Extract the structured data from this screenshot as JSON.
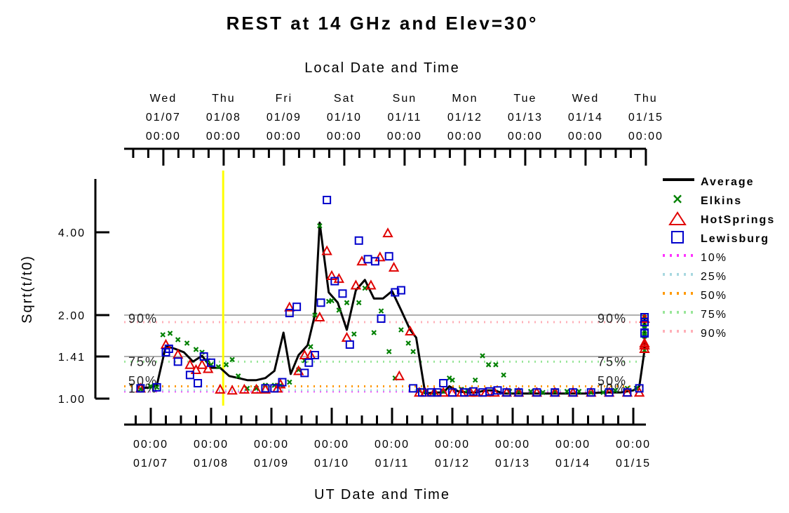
{
  "chart_data": {
    "type": "scatter",
    "title": "REST at 14 GHz and Elev=30°",
    "top_axis_label": "Local Date and Time",
    "xlabel": "UT Date and Time",
    "ylabel": "Sqrt(t/t0)",
    "y_scale": "sqrt-ish (tick labels at 1.00, 1.41, 2.00, 4.00)",
    "y_ticks": [
      "1.00",
      "1.41",
      "2.00",
      "4.00"
    ],
    "grid_values": [
      1.41,
      2.0
    ],
    "x_ticks_ut": [
      {
        "time": "00:00",
        "date": "01/07"
      },
      {
        "time": "00:00",
        "date": "01/08"
      },
      {
        "time": "00:00",
        "date": "01/09"
      },
      {
        "time": "00:00",
        "date": "01/10"
      },
      {
        "time": "00:00",
        "date": "01/11"
      },
      {
        "time": "00:00",
        "date": "01/12"
      },
      {
        "time": "00:00",
        "date": "01/13"
      },
      {
        "time": "00:00",
        "date": "01/14"
      },
      {
        "time": "00:00",
        "date": "01/15"
      }
    ],
    "x_ticks_local": [
      {
        "day": "Wed",
        "date": "01/07",
        "time": "00:00"
      },
      {
        "day": "Thu",
        "date": "01/08",
        "time": "00:00"
      },
      {
        "day": "Fri",
        "date": "01/09",
        "time": "00:00"
      },
      {
        "day": "Sat",
        "date": "01/10",
        "time": "00:00"
      },
      {
        "day": "Sun",
        "date": "01/11",
        "time": "00:00"
      },
      {
        "day": "Mon",
        "date": "01/12",
        "time": "00:00"
      },
      {
        "day": "Tue",
        "date": "01/13",
        "time": "00:00"
      },
      {
        "day": "Wed",
        "date": "01/14",
        "time": "00:00"
      },
      {
        "day": "Thu",
        "date": "01/15",
        "time": "00:00"
      }
    ],
    "marker_day": 1.2,
    "percentiles": [
      {
        "name": "10%",
        "value": 1.07,
        "color": "#ff33ff"
      },
      {
        "name": "25%",
        "value": 1.08,
        "color": "#a8d8e0"
      },
      {
        "name": "50%",
        "value": 1.12,
        "color": "#ff9900"
      },
      {
        "name": "75%",
        "value": 1.36,
        "color": "#99e699"
      },
      {
        "name": "90%",
        "value": 1.9,
        "color": "#ffb0b8"
      }
    ],
    "percentile_side_labels": [
      "90%",
      "75%",
      "50%",
      "10%"
    ],
    "colors": {
      "average": "#000000",
      "elkins": "#008000",
      "hotsprings": "#e00000",
      "lewisburg": "#0000cc",
      "marker": "#ffff00",
      "grid": "#b0b0b0"
    },
    "series": [
      {
        "name": "Average",
        "style": "line",
        "points": [
          [
            -0.17,
            1.1
          ],
          [
            0.0,
            1.11
          ],
          [
            0.1,
            1.13
          ],
          [
            0.25,
            1.56
          ],
          [
            0.4,
            1.52
          ],
          [
            0.55,
            1.47
          ],
          [
            0.7,
            1.36
          ],
          [
            0.85,
            1.42
          ],
          [
            1.0,
            1.3
          ],
          [
            1.15,
            1.3
          ],
          [
            1.3,
            1.22
          ],
          [
            1.45,
            1.2
          ],
          [
            1.6,
            1.18
          ],
          [
            1.75,
            1.18
          ],
          [
            1.9,
            1.2
          ],
          [
            2.05,
            1.27
          ],
          [
            2.2,
            1.75
          ],
          [
            2.32,
            1.24
          ],
          [
            2.45,
            1.43
          ],
          [
            2.6,
            1.57
          ],
          [
            2.72,
            2.0
          ],
          [
            2.8,
            4.3
          ],
          [
            2.95,
            2.55
          ],
          [
            3.1,
            2.3
          ],
          [
            3.25,
            1.79
          ],
          [
            3.4,
            2.6
          ],
          [
            3.55,
            2.85
          ],
          [
            3.7,
            2.4
          ],
          [
            3.85,
            2.4
          ],
          [
            4.0,
            2.58
          ],
          [
            4.15,
            2.12
          ],
          [
            4.3,
            1.79
          ],
          [
            4.4,
            1.68
          ],
          [
            4.55,
            1.05
          ],
          [
            4.7,
            1.06
          ],
          [
            4.85,
            1.06
          ],
          [
            4.95,
            1.12
          ],
          [
            5.1,
            1.07
          ],
          [
            5.25,
            1.06
          ],
          [
            5.4,
            1.06
          ],
          [
            5.55,
            1.08
          ],
          [
            5.7,
            1.08
          ],
          [
            5.85,
            1.05
          ],
          [
            6.0,
            1.05
          ],
          [
            6.3,
            1.05
          ],
          [
            6.6,
            1.05
          ],
          [
            6.9,
            1.05
          ],
          [
            7.2,
            1.05
          ],
          [
            7.5,
            1.06
          ],
          [
            7.8,
            1.06
          ],
          [
            8.0,
            1.08
          ],
          [
            8.1,
            1.12
          ],
          [
            8.3,
            1.5
          ],
          [
            8.45,
            1.77
          ],
          [
            8.55,
            1.75
          ],
          [
            8.65,
            1.9
          ],
          [
            8.75,
            1.75
          ],
          [
            8.9,
            1.85
          ],
          [
            9.1,
            1.95
          ]
        ]
      },
      {
        "name": "Elkins",
        "style": "x",
        "points": [
          [
            -0.17,
            1.09
          ],
          [
            0.0,
            1.12
          ],
          [
            0.1,
            1.11
          ],
          [
            0.2,
            1.72
          ],
          [
            0.32,
            1.74
          ],
          [
            0.45,
            1.65
          ],
          [
            0.6,
            1.6
          ],
          [
            0.75,
            1.51
          ],
          [
            0.85,
            1.47
          ],
          [
            0.95,
            1.37
          ],
          [
            1.0,
            1.33
          ],
          [
            1.12,
            1.31
          ],
          [
            1.25,
            1.33
          ],
          [
            1.35,
            1.38
          ],
          [
            1.45,
            1.22
          ],
          [
            1.6,
            1.1
          ],
          [
            1.75,
            1.1
          ],
          [
            1.9,
            1.13
          ],
          [
            2.05,
            1.13
          ],
          [
            2.15,
            1.13
          ],
          [
            2.3,
            1.16
          ],
          [
            2.45,
            1.28
          ],
          [
            2.55,
            1.37
          ],
          [
            2.65,
            1.55
          ],
          [
            2.72,
            2.0
          ],
          [
            2.8,
            4.2
          ],
          [
            2.95,
            2.33
          ],
          [
            3.0,
            2.35
          ],
          [
            3.12,
            2.12
          ],
          [
            3.25,
            2.3
          ],
          [
            3.37,
            1.73
          ],
          [
            3.45,
            2.3
          ],
          [
            3.55,
            2.65
          ],
          [
            3.7,
            1.75
          ],
          [
            3.82,
            2.1
          ],
          [
            3.95,
            1.48
          ],
          [
            4.05,
            1.2
          ],
          [
            4.15,
            1.79
          ],
          [
            4.27,
            1.6
          ],
          [
            4.35,
            1.48
          ],
          [
            4.45,
            1.08
          ],
          [
            4.55,
            1.07
          ],
          [
            4.7,
            1.06
          ],
          [
            4.85,
            1.07
          ],
          [
            4.95,
            1.2
          ],
          [
            5.0,
            1.18
          ],
          [
            5.15,
            1.09
          ],
          [
            5.25,
            1.08
          ],
          [
            5.38,
            1.18
          ],
          [
            5.5,
            1.42
          ],
          [
            5.6,
            1.33
          ],
          [
            5.72,
            1.33
          ],
          [
            5.85,
            1.23
          ],
          [
            5.95,
            1.07
          ],
          [
            6.1,
            1.07
          ],
          [
            6.3,
            1.07
          ],
          [
            6.5,
            1.06
          ],
          [
            6.7,
            1.07
          ],
          [
            6.9,
            1.07
          ],
          [
            7.1,
            1.07
          ],
          [
            7.3,
            1.06
          ],
          [
            7.5,
            1.06
          ],
          [
            7.7,
            1.08
          ],
          [
            7.9,
            1.1
          ],
          [
            8.05,
            1.1
          ],
          [
            8.25,
            1.5
          ],
          [
            8.4,
            1.7
          ],
          [
            8.5,
            1.78
          ],
          [
            8.6,
            1.71
          ],
          [
            8.72,
            1.85
          ],
          [
            8.85,
            1.73
          ],
          [
            9.0,
            1.82
          ],
          [
            9.13,
            1.97
          ]
        ]
      },
      {
        "name": "HotSprings",
        "style": "triangle",
        "points": [
          [
            -0.17,
            1.1
          ],
          [
            0.25,
            1.58
          ],
          [
            0.45,
            1.44
          ],
          [
            0.65,
            1.33
          ],
          [
            0.75,
            1.28
          ],
          [
            0.85,
            1.33
          ],
          [
            0.95,
            1.29
          ],
          [
            1.15,
            1.09
          ],
          [
            1.35,
            1.08
          ],
          [
            1.55,
            1.09
          ],
          [
            1.75,
            1.09
          ],
          [
            1.9,
            1.09
          ],
          [
            2.1,
            1.1
          ],
          [
            2.15,
            1.14
          ],
          [
            2.3,
            2.19
          ],
          [
            2.45,
            1.27
          ],
          [
            2.55,
            1.43
          ],
          [
            2.65,
            1.43
          ],
          [
            2.8,
            1.97
          ],
          [
            2.92,
            3.55
          ],
          [
            3.0,
            2.95
          ],
          [
            3.12,
            2.88
          ],
          [
            3.25,
            1.68
          ],
          [
            3.4,
            2.72
          ],
          [
            3.5,
            3.3
          ],
          [
            3.65,
            2.72
          ],
          [
            3.8,
            3.4
          ],
          [
            3.93,
            3.98
          ],
          [
            4.03,
            3.15
          ],
          [
            4.12,
            1.22
          ],
          [
            4.3,
            1.77
          ],
          [
            4.45,
            1.06
          ],
          [
            4.55,
            1.06
          ],
          [
            4.7,
            1.06
          ],
          [
            4.85,
            1.06
          ],
          [
            5.0,
            1.06
          ],
          [
            5.15,
            1.06
          ],
          [
            5.3,
            1.06
          ],
          [
            5.4,
            1.06
          ],
          [
            5.55,
            1.06
          ],
          [
            5.7,
            1.06
          ],
          [
            5.9,
            1.06
          ],
          [
            6.1,
            1.06
          ],
          [
            6.4,
            1.06
          ],
          [
            6.7,
            1.06
          ],
          [
            7.0,
            1.06
          ],
          [
            7.3,
            1.06
          ],
          [
            7.6,
            1.06
          ],
          [
            7.9,
            1.06
          ],
          [
            8.1,
            1.06
          ],
          [
            8.3,
            1.57
          ],
          [
            8.45,
            1.52
          ],
          [
            8.58,
            1.6
          ],
          [
            8.7,
            1.95
          ],
          [
            8.85,
            1.57
          ]
        ]
      },
      {
        "name": "Lewisburg",
        "style": "square",
        "points": [
          [
            -0.17,
            1.1
          ],
          [
            0.1,
            1.11
          ],
          [
            0.25,
            1.47
          ],
          [
            0.3,
            1.52
          ],
          [
            0.45,
            1.36
          ],
          [
            0.65,
            1.23
          ],
          [
            0.78,
            1.15
          ],
          [
            0.88,
            1.41
          ],
          [
            1.0,
            1.35
          ],
          [
            1.9,
            1.1
          ],
          [
            2.05,
            1.1
          ],
          [
            2.18,
            1.16
          ],
          [
            2.3,
            2.05
          ],
          [
            2.42,
            2.2
          ],
          [
            2.55,
            1.25
          ],
          [
            2.62,
            1.35
          ],
          [
            2.72,
            1.43
          ],
          [
            2.82,
            2.3
          ],
          [
            2.92,
            5.0
          ],
          [
            3.05,
            2.82
          ],
          [
            3.18,
            2.52
          ],
          [
            3.3,
            1.58
          ],
          [
            3.45,
            3.8
          ],
          [
            3.6,
            3.35
          ],
          [
            3.72,
            3.3
          ],
          [
            3.82,
            1.95
          ],
          [
            3.95,
            3.42
          ],
          [
            4.05,
            2.55
          ],
          [
            4.15,
            2.6
          ],
          [
            4.35,
            1.1
          ],
          [
            4.5,
            1.06
          ],
          [
            4.65,
            1.06
          ],
          [
            4.75,
            1.06
          ],
          [
            4.85,
            1.15
          ],
          [
            5.0,
            1.06
          ],
          [
            5.2,
            1.06
          ],
          [
            5.35,
            1.07
          ],
          [
            5.5,
            1.06
          ],
          [
            5.62,
            1.07
          ],
          [
            5.75,
            1.08
          ],
          [
            5.9,
            1.06
          ],
          [
            6.1,
            1.06
          ],
          [
            6.4,
            1.06
          ],
          [
            6.7,
            1.06
          ],
          [
            7.0,
            1.06
          ],
          [
            7.3,
            1.06
          ],
          [
            7.6,
            1.06
          ],
          [
            7.9,
            1.06
          ],
          [
            8.1,
            1.1
          ],
          [
            8.3,
            1.9
          ],
          [
            8.48,
            1.74
          ],
          [
            8.6,
            1.97
          ],
          [
            8.73,
            1.75
          ]
        ]
      }
    ]
  }
}
